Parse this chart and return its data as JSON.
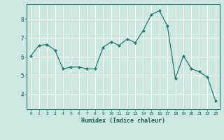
{
  "x": [
    0,
    1,
    2,
    3,
    4,
    5,
    6,
    7,
    8,
    9,
    10,
    11,
    12,
    13,
    14,
    15,
    16,
    17,
    18,
    19,
    20,
    21,
    22,
    23
  ],
  "y": [
    6.05,
    6.6,
    6.65,
    6.35,
    5.35,
    5.45,
    5.45,
    5.35,
    5.35,
    6.5,
    6.8,
    6.6,
    6.95,
    6.75,
    7.4,
    8.25,
    8.45,
    7.65,
    4.85,
    6.05,
    5.35,
    5.2,
    4.9,
    3.65
  ],
  "line_color": "#2a7a6a",
  "marker": "D",
  "marker_size": 2,
  "bg_color": "#cce8e0",
  "grid_color": "#b0d8ce",
  "xlabel": "Humidex (Indice chaleur)",
  "xlabel_color": "#1a5c52",
  "yticks": [
    4,
    5,
    6,
    7,
    8
  ],
  "xticks": [
    0,
    1,
    2,
    3,
    4,
    5,
    6,
    7,
    8,
    9,
    10,
    11,
    12,
    13,
    14,
    15,
    16,
    17,
    18,
    19,
    20,
    21,
    22,
    23
  ],
  "ylim": [
    3.2,
    8.8
  ],
  "xlim": [
    -0.5,
    23.5
  ],
  "tick_color": "#1a5c52",
  "spine_color": "#2a7a6a"
}
